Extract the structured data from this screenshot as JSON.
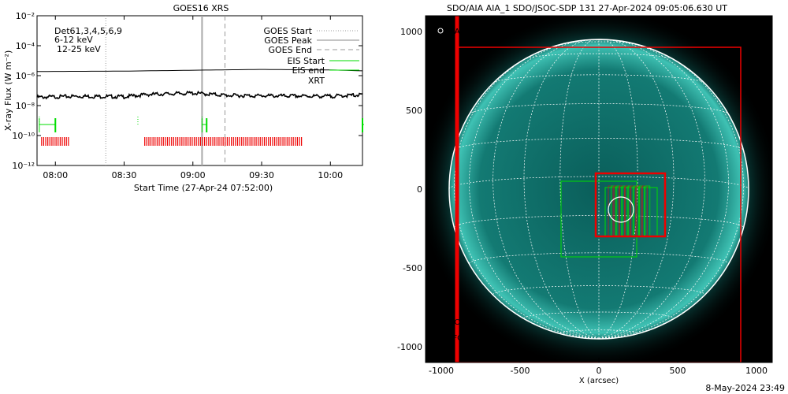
{
  "left_chart_title": "GOES16 XRS",
  "right_chart_title": "SDO/AIA AIA_1 SDO/JSOC-SDP 131 27-Apr-2024 09:05:06.630 UT",
  "footer_timestamp": "8-May-2024 23:49",
  "goes_legend": {
    "goes_start": "GOES Start",
    "goes_peak": "GOES Peak",
    "goes_end": "GOES End",
    "eis_start": "EIS Start",
    "eis_end": "EIS end",
    "xrt": "XRT"
  },
  "energy_labels": {
    "det": "Det61,3,4,5,6,9",
    "band_low": "6-12 keV",
    "band_high": "12-25 keV"
  },
  "aia_labels": {
    "flare_location": "AIA flare location",
    "eis_fov": "EIS FOV",
    "xrt_fov": "XRT FOV"
  },
  "colors": {
    "eis": "#00dd00",
    "xrt": "#ee0000",
    "band_low": "#cc00cc",
    "band_high": "#00cc00",
    "sun_disk": "#0f6f6a",
    "grid": "#ffffff"
  },
  "chart_data": [
    {
      "type": "line",
      "title": "GOES16 XRS",
      "xlabel": "Start Time (27-Apr-24 07:52:00)",
      "ylabel": "X-ray Flux (W m⁻²)",
      "y_scale": "log",
      "ylim": [
        1e-12,
        0.01
      ],
      "y_ticks": [
        {
          "value": -2,
          "label": "10⁻²"
        },
        {
          "value": -4,
          "label": "10⁻⁴"
        },
        {
          "value": -6,
          "label": "10⁻⁶"
        },
        {
          "value": -8,
          "label": "10⁻⁸"
        },
        {
          "value": -10,
          "label": "10⁻¹⁰"
        },
        {
          "value": -12,
          "label": "10⁻¹²"
        }
      ],
      "x_ticks": [
        "08:00",
        "08:30",
        "09:00",
        "09:30",
        "10:00"
      ],
      "x_range": [
        "07:52",
        "10:14"
      ],
      "series": [
        {
          "name": "",
          "style": "solid",
          "points": [
            [
              "07:52",
              1.9e-06
            ],
            [
              "08:30",
              2e-06
            ],
            [
              "09:00",
              2.3e-06
            ],
            [
              "09:30",
              2.6e-06
            ],
            [
              "10:00",
              2.4e-06
            ],
            [
              "10:14",
              2.1e-06
            ]
          ]
        },
        {
          "name": "",
          "style": "noisy",
          "points": [
            [
              "07:52",
              3.6e-08
            ],
            [
              "08:10",
              4.2e-08
            ],
            [
              "08:30",
              3.9e-08
            ],
            [
              "08:40",
              5.5e-08
            ],
            [
              "09:00",
              6.8e-08
            ],
            [
              "09:15",
              4.8e-08
            ],
            [
              "09:30",
              4.5e-08
            ],
            [
              "10:00",
              4.2e-08
            ],
            [
              "10:14",
              5.2e-08
            ]
          ]
        }
      ],
      "markers": {
        "goes_start": "08:22",
        "goes_peak": "09:04",
        "goes_end": "09:14"
      },
      "eis_windows": [
        [
          "07:53",
          "08:00"
        ],
        [
          "09:04",
          "09:06"
        ],
        [
          "10:14",
          "10:14"
        ]
      ],
      "eis_start_ticks": [
        "07:53",
        "08:36",
        "09:04"
      ],
      "xrt_intervals": [
        [
          "07:54",
          "08:06"
        ],
        [
          "08:39",
          "09:48"
        ]
      ]
    },
    {
      "type": "image",
      "title": "SDO/AIA AIA_1 SDO/JSOC-SDP 131 27-Apr-2024 09:05:06.630 UT",
      "xlabel": "X (arcsec)",
      "ylabel": "",
      "xlim": [
        -1100,
        1100
      ],
      "ylim": [
        -1100,
        1100
      ],
      "x_ticks": [
        -1000,
        -500,
        0,
        500,
        1000
      ],
      "y_ticks": [
        1000,
        500,
        0,
        -500,
        -1000
      ],
      "solar_radius_arcsec": 950,
      "flare_location": [
        140,
        -130
      ],
      "xrt_fov": [
        [
          -900,
          -1100
        ],
        [
          900,
          900
        ]
      ],
      "xrt_box_small": [
        [
          -20,
          -300
        ],
        [
          420,
          100
        ]
      ],
      "eis_fov_outer": [
        [
          -240,
          -430
        ],
        [
          240,
          50
        ]
      ],
      "eis_fov_inner": [
        [
          40,
          -300
        ],
        [
          370,
          10
        ]
      ]
    }
  ]
}
